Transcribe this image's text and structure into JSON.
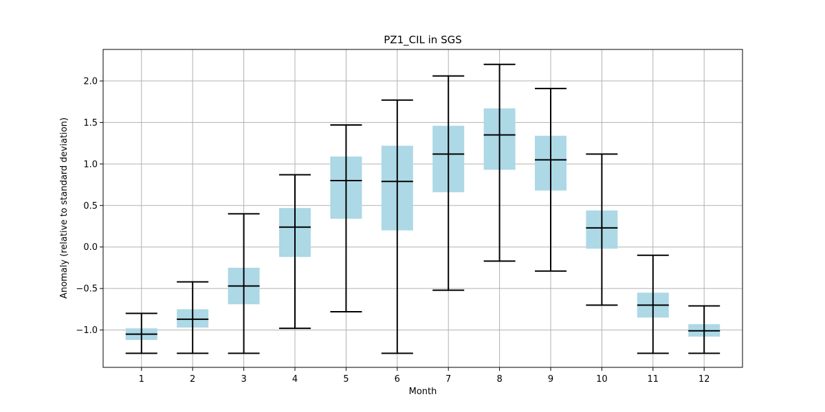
{
  "chart_data": {
    "type": "boxplot",
    "title": "PZ1_CIL in SGS",
    "xlabel": "Month",
    "ylabel": "Anomaly (relative to standard deviation)",
    "categories": [
      "1",
      "2",
      "3",
      "4",
      "5",
      "6",
      "7",
      "8",
      "9",
      "10",
      "11",
      "12"
    ],
    "ylim": [
      -1.45,
      2.38
    ],
    "yticks": [
      -1.0,
      -0.5,
      0.0,
      0.5,
      1.0,
      1.5,
      2.0
    ],
    "ytick_labels": [
      "−1.0",
      "−0.5",
      "0.0",
      "0.5",
      "1.0",
      "1.5",
      "2.0"
    ],
    "grid": true,
    "box_color": "#add8e6",
    "line_color": "#000000",
    "grid_color": "#b0b0b0",
    "boxes": [
      {
        "whisker_low": -1.28,
        "q1": -1.12,
        "median": -1.05,
        "q3": -0.98,
        "whisker_high": -0.8
      },
      {
        "whisker_low": -1.28,
        "q1": -0.97,
        "median": -0.87,
        "q3": -0.75,
        "whisker_high": -0.42
      },
      {
        "whisker_low": -1.28,
        "q1": -0.69,
        "median": -0.47,
        "q3": -0.25,
        "whisker_high": 0.4
      },
      {
        "whisker_low": -0.98,
        "q1": -0.12,
        "median": 0.24,
        "q3": 0.47,
        "whisker_high": 0.87
      },
      {
        "whisker_low": -0.78,
        "q1": 0.34,
        "median": 0.8,
        "q3": 1.09,
        "whisker_high": 1.47
      },
      {
        "whisker_low": -1.28,
        "q1": 0.2,
        "median": 0.79,
        "q3": 1.22,
        "whisker_high": 1.77
      },
      {
        "whisker_low": -0.52,
        "q1": 0.66,
        "median": 1.12,
        "q3": 1.46,
        "whisker_high": 2.06
      },
      {
        "whisker_low": -0.17,
        "q1": 0.93,
        "median": 1.35,
        "q3": 1.67,
        "whisker_high": 2.2
      },
      {
        "whisker_low": -0.29,
        "q1": 0.68,
        "median": 1.05,
        "q3": 1.34,
        "whisker_high": 1.91
      },
      {
        "whisker_low": -0.7,
        "q1": -0.02,
        "median": 0.23,
        "q3": 0.44,
        "whisker_high": 1.12
      },
      {
        "whisker_low": -1.28,
        "q1": -0.85,
        "median": -0.7,
        "q3": -0.55,
        "whisker_high": -0.1
      },
      {
        "whisker_low": -1.28,
        "q1": -1.08,
        "median": -1.01,
        "q3": -0.93,
        "whisker_high": -0.71
      }
    ]
  }
}
